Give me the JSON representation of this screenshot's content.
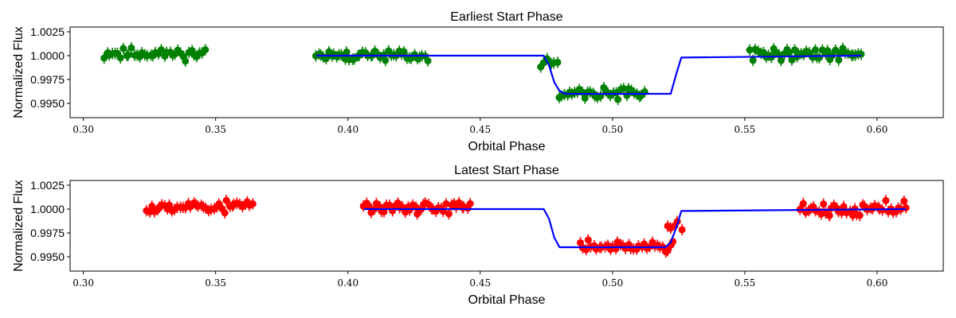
{
  "chart_data": [
    {
      "type": "scatter",
      "title": "Earliest Start Phase",
      "xlabel": "Orbital Phase",
      "ylabel": "Normalized Flux",
      "xlim": [
        0.295,
        0.625
      ],
      "ylim": [
        0.9935,
        1.003
      ],
      "xticks": [
        "0.30",
        "0.35",
        "0.40",
        "0.45",
        "0.50",
        "0.55",
        "0.60"
      ],
      "yticks": [
        "0.9950",
        "0.9975",
        "1.0000",
        "1.0025"
      ],
      "grid": false,
      "colors": {
        "points": "#008000",
        "model": "#0000ff"
      },
      "series": [
        {
          "kind": "points",
          "error_bar": 0.0006,
          "segments": [
            {
              "x_start": 0.308,
              "x_end": 0.346,
              "n": 38,
              "mean": 1.0002,
              "amp": 0.0005,
              "seed": 11
            },
            {
              "x_start": 0.388,
              "x_end": 0.43,
              "n": 44,
              "mean": 1.0,
              "amp": 0.0005,
              "seed": 23
            },
            {
              "x_start": 0.473,
              "x_end": 0.479,
              "n": 6,
              "mean": 0.9992,
              "amp": 0.0006,
              "seed": 31
            },
            {
              "x_start": 0.48,
              "x_end": 0.512,
              "n": 34,
              "mean": 0.996,
              "amp": 0.0005,
              "seed": 37
            },
            {
              "x_start": 0.552,
              "x_end": 0.594,
              "n": 44,
              "mean": 1.0002,
              "amp": 0.0006,
              "seed": 41
            }
          ]
        },
        {
          "kind": "model",
          "x": [
            0.388,
            0.474,
            0.476,
            0.478,
            0.48,
            0.482,
            0.522,
            0.524,
            0.526,
            0.594
          ],
          "y": [
            1.0,
            1.0,
            0.999,
            0.9972,
            0.9963,
            0.996,
            0.996,
            0.998,
            0.9998,
            1.0
          ]
        }
      ]
    },
    {
      "type": "scatter",
      "title": "Latest Start Phase",
      "xlabel": "Orbital Phase",
      "ylabel": "Normalized Flux",
      "xlim": [
        0.295,
        0.625
      ],
      "ylim": [
        0.9935,
        1.003
      ],
      "xticks": [
        "0.30",
        "0.35",
        "0.40",
        "0.45",
        "0.50",
        "0.55",
        "0.60"
      ],
      "yticks": [
        "0.9950",
        "0.9975",
        "1.0000",
        "1.0025"
      ],
      "grid": false,
      "colors": {
        "points": "#ff0000",
        "model": "#0000ff"
      },
      "series": [
        {
          "kind": "points",
          "error_bar": 0.0006,
          "segments": [
            {
              "x_start": 0.324,
              "x_end": 0.364,
              "n": 42,
              "mean": 1.0003,
              "amp": 0.0006,
              "seed": 53
            },
            {
              "x_start": 0.406,
              "x_end": 0.446,
              "n": 42,
              "mean": 1.0002,
              "amp": 0.0005,
              "seed": 59
            },
            {
              "x_start": 0.488,
              "x_end": 0.523,
              "n": 36,
              "mean": 0.996,
              "amp": 0.0005,
              "seed": 61
            },
            {
              "x_start": 0.521,
              "x_end": 0.526,
              "n": 5,
              "mean": 0.9985,
              "amp": 0.0008,
              "seed": 67
            },
            {
              "x_start": 0.571,
              "x_end": 0.611,
              "n": 42,
              "mean": 1.0,
              "amp": 0.0006,
              "seed": 71
            }
          ]
        },
        {
          "kind": "model",
          "x": [
            0.406,
            0.474,
            0.476,
            0.478,
            0.48,
            0.52,
            0.522,
            0.524,
            0.526,
            0.611
          ],
          "y": [
            1.0,
            1.0,
            0.999,
            0.997,
            0.996,
            0.996,
            0.9965,
            0.998,
            0.9998,
            1.0
          ]
        }
      ]
    }
  ]
}
